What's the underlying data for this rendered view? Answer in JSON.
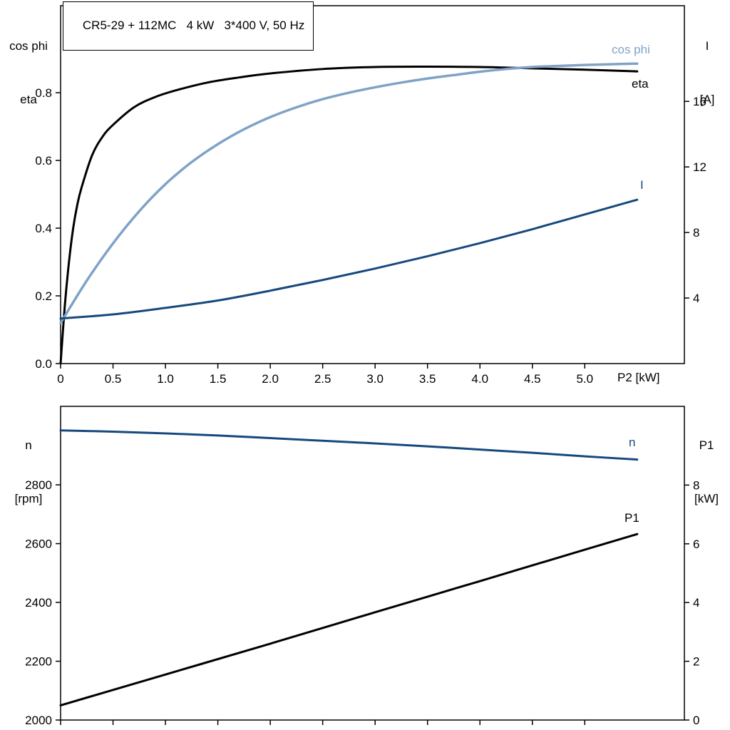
{
  "title": "CR5-29 + 112MC   4 kW   3*400 V, 50 Hz",
  "colors": {
    "frame": "#000000",
    "black_curve": "#000000",
    "steel_blue": "#7fa3c6",
    "navy": "#16497d"
  },
  "labels": {
    "top_left_line1": "cos phi",
    "top_left_line2": "eta",
    "top_right_line1": "I",
    "top_right_line2": "[A]",
    "bottom_left_line1": "n",
    "bottom_left_line2": "[rpm]",
    "bottom_right_line1": "P1",
    "bottom_right_line2": "[kW]",
    "x_axis": "P2 [kW]"
  },
  "chart_data": [
    {
      "type": "line",
      "title": "CR5-29 + 112MC   4 kW   3*400 V, 50 Hz",
      "xlabel": "P2 [kW]",
      "ylabel_left": "cos phi / eta",
      "ylabel_right": "I [A]",
      "xlim": [
        0,
        5.95
      ],
      "ylim_left": [
        0,
        1.057
      ],
      "ylim_right": [
        0,
        21.84
      ],
      "grid": false,
      "legend_position": "inline-labels",
      "xticks": [
        0,
        0.5,
        1.0,
        1.5,
        2.0,
        2.5,
        3.0,
        3.5,
        4.0,
        4.5,
        5.0
      ],
      "xtick_labels": [
        "0",
        "0.5",
        "1.0",
        "1.5",
        "2.0",
        "2.5",
        "3.0",
        "3.5",
        "4.0",
        "4.5",
        "5.0"
      ],
      "yticks_left": [
        0.0,
        0.2,
        0.4,
        0.6,
        0.8
      ],
      "ytick_labels_left": [
        "0.0",
        "0.2",
        "0.4",
        "0.6",
        "0.8"
      ],
      "yticks_right": [
        4,
        8,
        12,
        16
      ],
      "ytick_labels_right": [
        "4",
        "8",
        "12",
        "16"
      ],
      "series": [
        {
          "name": "eta",
          "axis": "left",
          "color": "#000000",
          "width": 3,
          "x": [
            0,
            0.04,
            0.08,
            0.12,
            0.16,
            0.2,
            0.3,
            0.4,
            0.5,
            0.7,
            0.9,
            1.1,
            1.4,
            1.7,
            2.0,
            2.5,
            3.0,
            3.5,
            4.0,
            4.5,
            5.0,
            5.5
          ],
          "y": [
            0,
            0.17,
            0.3,
            0.4,
            0.47,
            0.52,
            0.615,
            0.67,
            0.705,
            0.757,
            0.787,
            0.807,
            0.83,
            0.845,
            0.857,
            0.87,
            0.876,
            0.877,
            0.876,
            0.872,
            0.868,
            0.863
          ]
        },
        {
          "name": "cos phi",
          "axis": "left",
          "color": "#7fa3c6",
          "width": 3.5,
          "x": [
            0,
            0.25,
            0.5,
            0.75,
            1.0,
            1.25,
            1.5,
            1.75,
            2.0,
            2.25,
            2.5,
            2.75,
            3.0,
            3.25,
            3.5,
            3.75,
            4.0,
            4.25,
            4.5,
            4.75,
            5.0,
            5.25,
            5.5
          ],
          "y": [
            0.12,
            0.245,
            0.355,
            0.45,
            0.53,
            0.595,
            0.648,
            0.692,
            0.728,
            0.757,
            0.781,
            0.8,
            0.816,
            0.83,
            0.842,
            0.852,
            0.862,
            0.87,
            0.876,
            0.879,
            0.882,
            0.884,
            0.886
          ]
        },
        {
          "name": "I",
          "axis": "right",
          "color": "#16497d",
          "width": 3,
          "x": [
            0,
            0.5,
            1.0,
            1.5,
            2.0,
            2.5,
            3.0,
            3.5,
            4.0,
            4.5,
            5.0,
            5.5
          ],
          "y": [
            2.75,
            3.0,
            3.4,
            3.85,
            4.45,
            5.1,
            5.8,
            6.55,
            7.35,
            8.2,
            9.1,
            10.0
          ]
        }
      ]
    },
    {
      "type": "line",
      "title": "",
      "xlabel": "",
      "ylabel_left": "n [rpm]",
      "ylabel_right": "P1 [kW]",
      "xlim": [
        0,
        5.95
      ],
      "ylim_left": [
        2000,
        3067
      ],
      "ylim_right": [
        0,
        10.68
      ],
      "grid": false,
      "legend_position": "inline-labels",
      "xticks": [
        0,
        0.5,
        1.0,
        1.5,
        2.0,
        2.5,
        3.0,
        3.5,
        4.0,
        4.5,
        5.0
      ],
      "xtick_labels": [
        "",
        "",
        "",
        "",
        "",
        "",
        "",
        "",
        "",
        "",
        ""
      ],
      "yticks_left": [
        2000,
        2200,
        2400,
        2600,
        2800
      ],
      "ytick_labels_left": [
        "2000",
        "2200",
        "2400",
        "2600",
        "2800"
      ],
      "yticks_right": [
        0,
        2,
        4,
        6,
        8
      ],
      "ytick_labels_right": [
        "0",
        "2",
        "4",
        "6",
        "8"
      ],
      "series": [
        {
          "name": "n",
          "axis": "left",
          "color": "#16497d",
          "width": 3,
          "x": [
            0,
            0.5,
            1.0,
            1.5,
            2.0,
            2.5,
            3.0,
            3.5,
            4.0,
            4.5,
            5.0,
            5.5
          ],
          "y": [
            2985,
            2981,
            2975,
            2968,
            2959,
            2950,
            2941,
            2931,
            2920,
            2909,
            2897,
            2886
          ]
        },
        {
          "name": "P1",
          "axis": "right",
          "color": "#000000",
          "width": 3,
          "x": [
            0,
            1.0,
            2.0,
            3.0,
            4.0,
            5.0,
            5.5
          ],
          "y": [
            0.5,
            1.55,
            2.6,
            3.67,
            4.73,
            5.8,
            6.33
          ]
        }
      ]
    }
  ]
}
